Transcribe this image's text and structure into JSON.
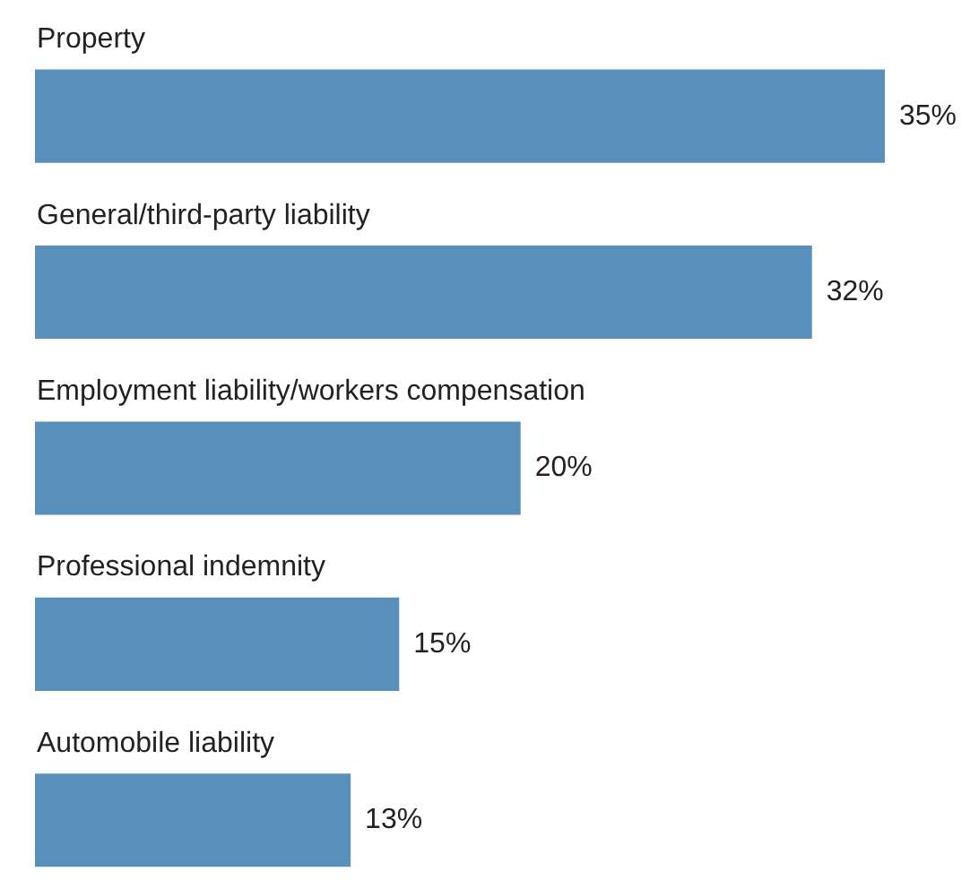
{
  "chart_data": {
    "type": "bar",
    "orientation": "horizontal",
    "categories": [
      "Property",
      "General/third-party liability",
      "Employment liability/workers compensation",
      "Professional indemnity",
      "Automobile liability"
    ],
    "values": [
      35,
      32,
      20,
      15,
      13
    ],
    "color": "#5890bb",
    "value_labels": [
      "35%",
      "32%",
      "20%",
      "15%",
      "13%"
    ]
  }
}
